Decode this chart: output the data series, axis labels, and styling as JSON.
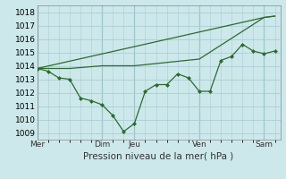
{
  "background_color": "#cce8eb",
  "grid_color": "#aacdd4",
  "line_color": "#2d6b2d",
  "marker_color": "#2d6b2d",
  "title": "Pression niveau de la mer( hPa )",
  "ylim": [
    1008.5,
    1018.5
  ],
  "yticks": [
    1009,
    1010,
    1011,
    1012,
    1013,
    1014,
    1015,
    1016,
    1017,
    1018
  ],
  "xtick_labels": [
    "Mer",
    "Dim",
    "Jeu",
    "Ven",
    "Sam"
  ],
  "xtick_positions": [
    0,
    24,
    36,
    60,
    84
  ],
  "xlim": [
    0,
    90
  ],
  "vlines": [
    0,
    24,
    36,
    60,
    84
  ],
  "series1": {
    "x": [
      0,
      4,
      8,
      12,
      16,
      20,
      24,
      28,
      32,
      36,
      40,
      44,
      48,
      52,
      56,
      60,
      64,
      68,
      72,
      76,
      80,
      84,
      88
    ],
    "y": [
      1013.8,
      1013.6,
      1013.1,
      1013.0,
      1011.6,
      1011.4,
      1011.1,
      1010.3,
      1009.1,
      1009.7,
      1012.1,
      1012.6,
      1012.6,
      1013.4,
      1013.1,
      1012.1,
      1012.1,
      1014.4,
      1014.7,
      1015.6,
      1015.1,
      1014.9,
      1015.1
    ]
  },
  "series2": {
    "x": [
      0,
      12,
      24,
      36,
      60,
      84,
      88
    ],
    "y": [
      1013.8,
      1013.8,
      1014.0,
      1014.0,
      1014.5,
      1017.6,
      1017.7
    ]
  },
  "series3": {
    "x": [
      0,
      84,
      88
    ],
    "y": [
      1013.8,
      1017.6,
      1017.7
    ]
  },
  "title_fontsize": 7.5,
  "tick_fontsize": 6.5
}
